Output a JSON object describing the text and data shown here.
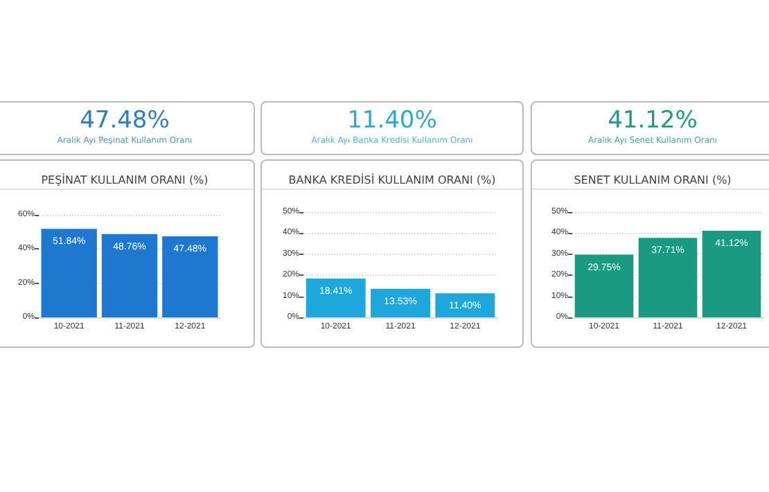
{
  "chart_data": [
    {
      "type": "other",
      "title": "47.48%",
      "subtitle": "Aralık Ayı Peşinat Kullanım Oranı",
      "color": "#2f7fc0"
    },
    {
      "type": "other",
      "title": "11.40%",
      "subtitle": "Aralık Ayı Banka Kredisi Kullanım Oranı",
      "color": "#2ea8d8"
    },
    {
      "type": "other",
      "title": "41.12%",
      "subtitle": "Aralık Ayı Senet Kullanım Oranı",
      "color": "#1d9a80"
    },
    {
      "type": "bar",
      "title": "PEŞİNAT KULLANIM ORANI (%)",
      "categories": [
        "10-2021",
        "11-2021",
        "12-2021"
      ],
      "values": [
        51.84,
        48.76,
        47.48
      ],
      "value_labels": [
        "51.84%",
        "48.76%",
        "47.48%"
      ],
      "color": "#1f78cf",
      "ylim": [
        0,
        60
      ],
      "yticks": [
        {
          "value": 0,
          "label": "0%"
        },
        {
          "value": 20,
          "label": "20%"
        },
        {
          "value": 40,
          "label": "40%"
        },
        {
          "value": 60,
          "label": "60%"
        }
      ],
      "grid": "y"
    },
    {
      "type": "bar",
      "title": "BANKA KREDİSİ KULLANIM ORANI (%)",
      "categories": [
        "10-2021",
        "11-2021",
        "12-2021"
      ],
      "values": [
        18.41,
        13.53,
        11.4
      ],
      "value_labels": [
        "18.41%",
        "13.53%",
        "11.40%"
      ],
      "color": "#1ea7dd",
      "ylim": [
        0,
        50
      ],
      "yticks": [
        {
          "value": 0,
          "label": "0%"
        },
        {
          "value": 10,
          "label": "10%"
        },
        {
          "value": 20,
          "label": "20%"
        },
        {
          "value": 30,
          "label": "30%"
        },
        {
          "value": 40,
          "label": "40%"
        },
        {
          "value": 50,
          "label": "50%"
        }
      ],
      "grid": "y"
    },
    {
      "type": "bar",
      "title": "SENET KULLANIM ORANI (%)",
      "categories": [
        "10-2021",
        "11-2021",
        "12-2021"
      ],
      "values": [
        29.75,
        37.71,
        41.12
      ],
      "value_labels": [
        "29.75%",
        "37.71%",
        "41.12%"
      ],
      "color": "#1a9a80",
      "ylim": [
        0,
        50
      ],
      "yticks": [
        {
          "value": 0,
          "label": "0%"
        },
        {
          "value": 10,
          "label": "10%"
        },
        {
          "value": 20,
          "label": "20%"
        },
        {
          "value": 30,
          "label": "30%"
        },
        {
          "value": 40,
          "label": "40%"
        },
        {
          "value": 50,
          "label": "50%"
        }
      ],
      "grid": "y"
    }
  ]
}
